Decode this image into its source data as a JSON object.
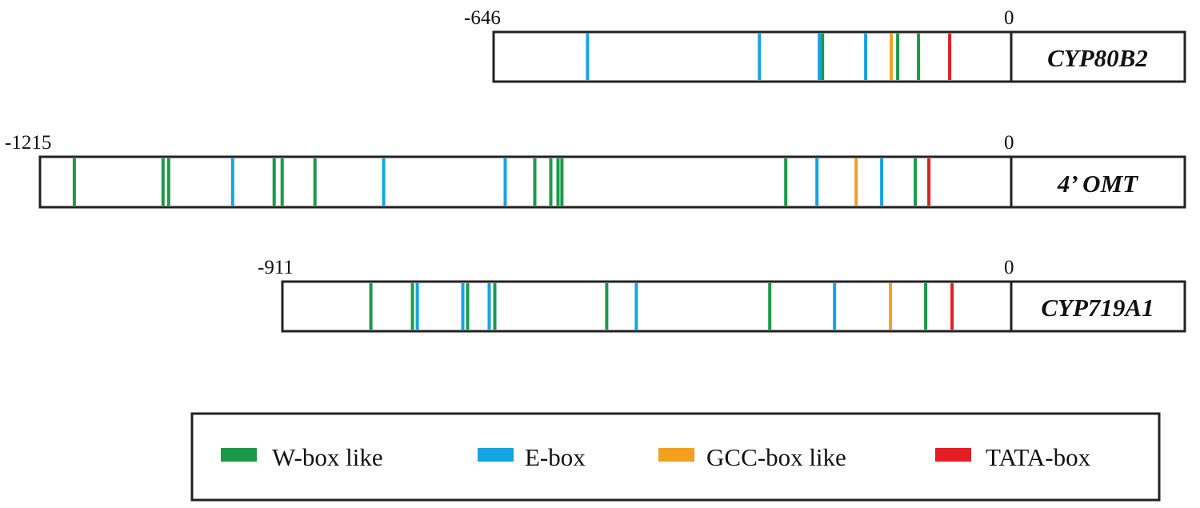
{
  "colors": {
    "w_box": "#1a9a48",
    "e_box": "#16a4e2",
    "gcc_box": "#f2a01e",
    "tata_box": "#e31e25"
  },
  "legend": [
    {
      "key": "w_box",
      "label": "W-box like"
    },
    {
      "key": "e_box",
      "label": "E-box"
    },
    {
      "key": "gcc_box",
      "label": "GCC-box like"
    },
    {
      "key": "tata_box",
      "label": "TATA-box"
    }
  ],
  "genes": [
    {
      "name": "CYP80B2",
      "start_label": "-646",
      "end_label": "0",
      "length": 646,
      "elements": [
        {
          "type": "e_box",
          "pos": -530
        },
        {
          "type": "e_box",
          "pos": -315
        },
        {
          "type": "e_box",
          "pos": -240
        },
        {
          "type": "w_box",
          "pos": -236
        },
        {
          "type": "e_box",
          "pos": -182
        },
        {
          "type": "gcc_box",
          "pos": -150
        },
        {
          "type": "w_box",
          "pos": -142
        },
        {
          "type": "w_box",
          "pos": -116
        },
        {
          "type": "tata_box",
          "pos": -77
        }
      ]
    },
    {
      "name": "4’ OMT",
      "start_label": "-1215",
      "end_label": "0",
      "length": 1215,
      "elements": [
        {
          "type": "w_box",
          "pos": -1172
        },
        {
          "type": "w_box",
          "pos": -1061
        },
        {
          "type": "w_box",
          "pos": -1054
        },
        {
          "type": "e_box",
          "pos": -974
        },
        {
          "type": "w_box",
          "pos": -922
        },
        {
          "type": "w_box",
          "pos": -912
        },
        {
          "type": "w_box",
          "pos": -871
        },
        {
          "type": "e_box",
          "pos": -785
        },
        {
          "type": "e_box",
          "pos": -633
        },
        {
          "type": "w_box",
          "pos": -596
        },
        {
          "type": "w_box",
          "pos": -576
        },
        {
          "type": "w_box",
          "pos": -567
        },
        {
          "type": "w_box",
          "pos": -562
        },
        {
          "type": "w_box",
          "pos": -282
        },
        {
          "type": "e_box",
          "pos": -243
        },
        {
          "type": "gcc_box",
          "pos": -194
        },
        {
          "type": "e_box",
          "pos": -162
        },
        {
          "type": "w_box",
          "pos": -120
        },
        {
          "type": "tata_box",
          "pos": -103
        }
      ]
    },
    {
      "name": "CYP719A1",
      "start_label": "-911",
      "end_label": "0",
      "length": 911,
      "elements": [
        {
          "type": "w_box",
          "pos": -801
        },
        {
          "type": "w_box",
          "pos": -749
        },
        {
          "type": "e_box",
          "pos": -743
        },
        {
          "type": "e_box",
          "pos": -686
        },
        {
          "type": "w_box",
          "pos": -680
        },
        {
          "type": "e_box",
          "pos": -653
        },
        {
          "type": "w_box",
          "pos": -646
        },
        {
          "type": "w_box",
          "pos": -506
        },
        {
          "type": "e_box",
          "pos": -469
        },
        {
          "type": "w_box",
          "pos": -302
        },
        {
          "type": "e_box",
          "pos": -221
        },
        {
          "type": "gcc_box",
          "pos": -151
        },
        {
          "type": "w_box",
          "pos": -107
        },
        {
          "type": "tata_box",
          "pos": -74
        }
      ]
    }
  ]
}
